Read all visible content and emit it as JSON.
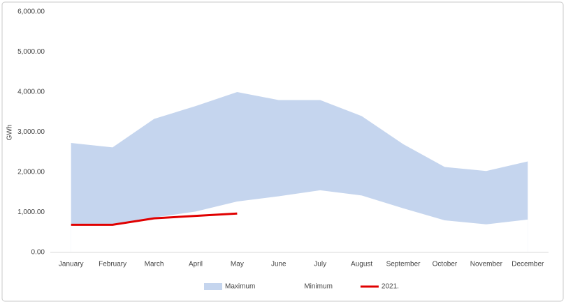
{
  "chart_data": {
    "type": "area",
    "y_label": "GWh",
    "categories": [
      "January",
      "February",
      "March",
      "April",
      "May",
      "June",
      "July",
      "August",
      "September",
      "October",
      "November",
      "December"
    ],
    "series": [
      {
        "name": "Maximum",
        "type": "area",
        "color": "#c5d5ee",
        "values": [
          2730,
          2620,
          3330,
          3650,
          4000,
          3800,
          3800,
          3400,
          2700,
          2130,
          2030,
          2270
        ]
      },
      {
        "name": "Minimum",
        "type": "area",
        "color": "#ffffff",
        "values": [
          700,
          700,
          870,
          1020,
          1270,
          1400,
          1550,
          1420,
          1100,
          800,
          700,
          820
        ]
      },
      {
        "name": "2021.",
        "type": "line",
        "color": "#e00000",
        "values": [
          690,
          690,
          850,
          910,
          970,
          null,
          null,
          null,
          null,
          null,
          null,
          null
        ]
      }
    ],
    "ylim": [
      0,
      6000
    ],
    "yticks": [
      {
        "value": 0,
        "label": "0.00"
      },
      {
        "value": 1000,
        "label": "1,000.00"
      },
      {
        "value": 2000,
        "label": "2,000.00"
      },
      {
        "value": 3000,
        "label": "3,000.00"
      },
      {
        "value": 4000,
        "label": "4,000.00"
      },
      {
        "value": 5000,
        "label": "5,000.00"
      },
      {
        "value": 6000,
        "label": "6,000.00"
      }
    ],
    "grid": false,
    "legend": "bottom"
  }
}
